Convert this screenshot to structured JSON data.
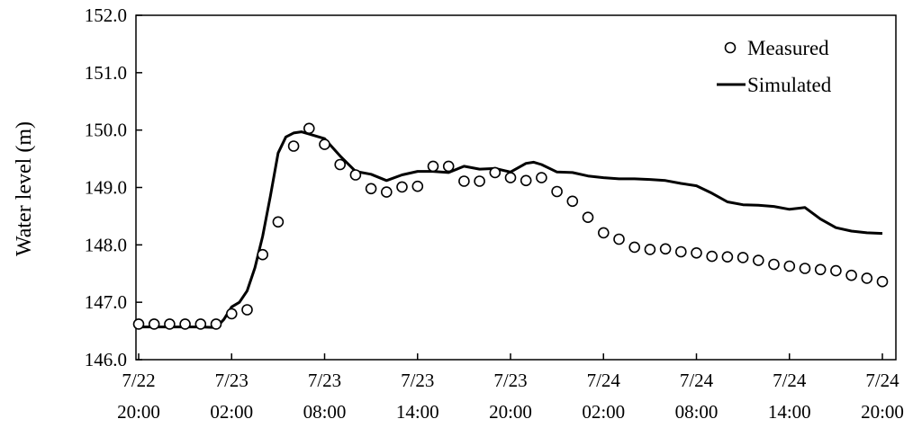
{
  "chart_data": {
    "type": "line",
    "ylabel": "Water level (m)",
    "ylim": [
      146.0,
      152.0
    ],
    "yticks": [
      "146.0",
      "147.0",
      "148.0",
      "149.0",
      "150.0",
      "151.0",
      "152.0"
    ],
    "xlim": [
      "7/22 20:00",
      "7/24 20:00"
    ],
    "xticks": [
      {
        "top": "7/22",
        "bottom": "20:00",
        "x": "7/22 20:00"
      },
      {
        "top": "7/23",
        "bottom": "02:00",
        "x": "7/23 02:00"
      },
      {
        "top": "7/23",
        "bottom": "08:00",
        "x": "7/23 08:00"
      },
      {
        "top": "7/23",
        "bottom": "14:00",
        "x": "7/23 14:00"
      },
      {
        "top": "7/23",
        "bottom": "20:00",
        "x": "7/23 20:00"
      },
      {
        "top": "7/24",
        "bottom": "02:00",
        "x": "7/24 02:00"
      },
      {
        "top": "7/24",
        "bottom": "08:00",
        "x": "7/24 08:00"
      },
      {
        "top": "7/24",
        "bottom": "14:00",
        "x": "7/24 14:00"
      },
      {
        "top": "7/24",
        "bottom": "20:00",
        "x": "7/24 20:00"
      }
    ],
    "grid": false,
    "legend": "top-right",
    "series": [
      {
        "name": "Measured",
        "style": "open-circle",
        "color": "#000000",
        "points": [
          [
            "7/22 20:00",
            146.62
          ],
          [
            "7/22 21:00",
            146.62
          ],
          [
            "7/22 22:00",
            146.62
          ],
          [
            "7/22 23:00",
            146.62
          ],
          [
            "7/23 00:00",
            146.62
          ],
          [
            "7/23 01:00",
            146.62
          ],
          [
            "7/23 02:00",
            146.8
          ],
          [
            "7/23 03:00",
            146.87
          ],
          [
            "7/23 04:00",
            147.83
          ],
          [
            "7/23 05:00",
            148.4
          ],
          [
            "7/23 06:00",
            149.72
          ],
          [
            "7/23 07:00",
            150.03
          ],
          [
            "7/23 08:00",
            149.75
          ],
          [
            "7/23 09:00",
            149.4
          ],
          [
            "7/23 10:00",
            149.22
          ],
          [
            "7/23 11:00",
            148.98
          ],
          [
            "7/23 12:00",
            148.92
          ],
          [
            "7/23 13:00",
            149.01
          ],
          [
            "7/23 14:00",
            149.02
          ],
          [
            "7/23 15:00",
            149.37
          ],
          [
            "7/23 16:00",
            149.37
          ],
          [
            "7/23 17:00",
            149.11
          ],
          [
            "7/23 18:00",
            149.11
          ],
          [
            "7/23 19:00",
            149.26
          ],
          [
            "7/23 20:00",
            149.17
          ],
          [
            "7/23 21:00",
            149.12
          ],
          [
            "7/23 22:00",
            149.17
          ],
          [
            "7/23 23:00",
            148.93
          ],
          [
            "7/24 00:00",
            148.76
          ],
          [
            "7/24 01:00",
            148.48
          ],
          [
            "7/24 02:00",
            148.21
          ],
          [
            "7/24 03:00",
            148.1
          ],
          [
            "7/24 04:00",
            147.96
          ],
          [
            "7/24 05:00",
            147.92
          ],
          [
            "7/24 06:00",
            147.93
          ],
          [
            "7/24 07:00",
            147.88
          ],
          [
            "7/24 08:00",
            147.86
          ],
          [
            "7/24 09:00",
            147.8
          ],
          [
            "7/24 10:00",
            147.79
          ],
          [
            "7/24 11:00",
            147.78
          ],
          [
            "7/24 12:00",
            147.73
          ],
          [
            "7/24 13:00",
            147.66
          ],
          [
            "7/24 14:00",
            147.63
          ],
          [
            "7/24 15:00",
            147.59
          ],
          [
            "7/24 16:00",
            147.57
          ],
          [
            "7/24 17:00",
            147.55
          ],
          [
            "7/24 18:00",
            147.47
          ],
          [
            "7/24 19:00",
            147.42
          ],
          [
            "7/24 20:00",
            147.36
          ]
        ]
      },
      {
        "name": "Simulated",
        "style": "line",
        "color": "#000000",
        "points": [
          [
            "7/22 20:00",
            146.57
          ],
          [
            "7/23 00:00",
            146.57
          ],
          [
            "7/23 01:00",
            146.56
          ],
          [
            "7/23 01:30",
            146.7
          ],
          [
            "7/23 02:00",
            146.92
          ],
          [
            "7/23 02:30",
            147.0
          ],
          [
            "7/23 03:00",
            147.2
          ],
          [
            "7/23 03:30",
            147.6
          ],
          [
            "7/23 04:00",
            148.15
          ],
          [
            "7/23 04:30",
            148.85
          ],
          [
            "7/23 05:00",
            149.6
          ],
          [
            "7/23 05:30",
            149.88
          ],
          [
            "7/23 06:00",
            149.95
          ],
          [
            "7/23 06:30",
            149.97
          ],
          [
            "7/23 07:00",
            149.93
          ],
          [
            "7/23 08:00",
            149.85
          ],
          [
            "7/23 09:00",
            149.55
          ],
          [
            "7/23 10:00",
            149.28
          ],
          [
            "7/23 11:00",
            149.23
          ],
          [
            "7/23 12:00",
            149.12
          ],
          [
            "7/23 13:00",
            149.22
          ],
          [
            "7/23 14:00",
            149.28
          ],
          [
            "7/23 15:00",
            149.28
          ],
          [
            "7/23 16:00",
            149.26
          ],
          [
            "7/23 17:00",
            149.37
          ],
          [
            "7/23 18:00",
            149.32
          ],
          [
            "7/23 19:00",
            149.33
          ],
          [
            "7/23 20:00",
            149.27
          ],
          [
            "7/23 21:00",
            149.42
          ],
          [
            "7/23 21:30",
            149.44
          ],
          [
            "7/23 22:00",
            149.4
          ],
          [
            "7/23 23:00",
            149.27
          ],
          [
            "7/24 00:00",
            149.26
          ],
          [
            "7/24 01:00",
            149.2
          ],
          [
            "7/24 02:00",
            149.17
          ],
          [
            "7/24 03:00",
            149.15
          ],
          [
            "7/24 04:00",
            149.15
          ],
          [
            "7/24 05:00",
            149.14
          ],
          [
            "7/24 06:00",
            149.12
          ],
          [
            "7/24 07:00",
            149.07
          ],
          [
            "7/24 08:00",
            149.03
          ],
          [
            "7/24 09:00",
            148.9
          ],
          [
            "7/24 10:00",
            148.75
          ],
          [
            "7/24 11:00",
            148.7
          ],
          [
            "7/24 12:00",
            148.69
          ],
          [
            "7/24 13:00",
            148.67
          ],
          [
            "7/24 14:00",
            148.62
          ],
          [
            "7/24 15:00",
            148.65
          ],
          [
            "7/24 15:30",
            148.55
          ],
          [
            "7/24 16:00",
            148.45
          ],
          [
            "7/24 17:00",
            148.3
          ],
          [
            "7/24 18:00",
            148.24
          ],
          [
            "7/24 19:00",
            148.21
          ],
          [
            "7/24 20:00",
            148.2
          ]
        ]
      }
    ]
  }
}
